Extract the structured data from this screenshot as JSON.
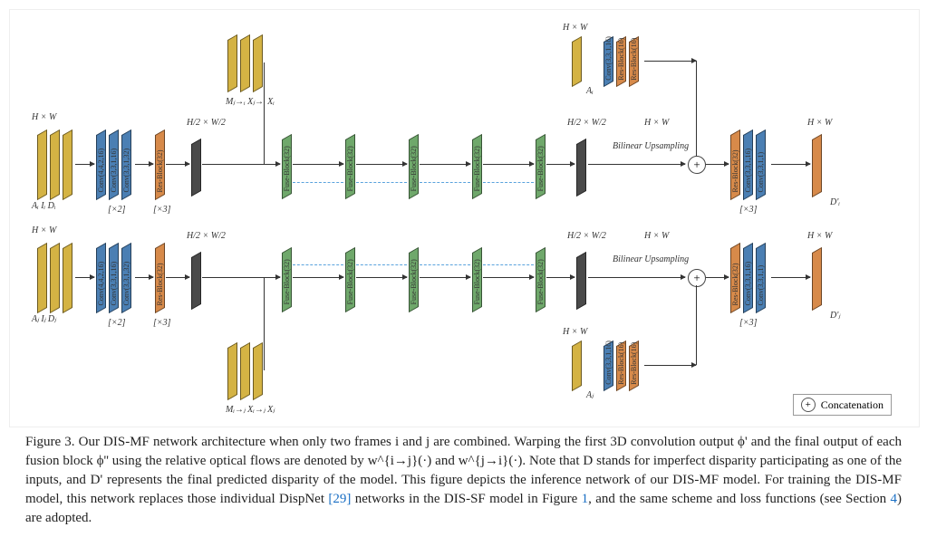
{
  "figure_number": "Figure 3.",
  "caption_text": "Our DIS-MF network architecture when only two frames i and j are combined. Warping the first 3D convolution output ϕ' and the final output of each fusion block ϕ'' using the relative optical flows are denoted by w^{i→j}(·) and w^{j→i}(·). Note that D stands for imperfect disparity participating as one of the inputs, and D' represents the final predicted disparity of the model. This figure depicts the inference network of our DIS-MF model. For training the DIS-MF model, this network replaces those individual DispNet ",
  "caption_ref1": "[29]",
  "caption_text2": " networks in the DIS-SF model in Figure ",
  "caption_ref2": "1",
  "caption_text3": ", and the same scheme and loss functions (see Section ",
  "caption_ref3": "4",
  "caption_text4": ") are adopted.",
  "legend_label": "Concatenation",
  "colors": {
    "yellow": "#d4b344",
    "blue": "#4b7fb3",
    "orange": "#d78a4a",
    "green": "#6fa86b",
    "dark": "#4a4a4a",
    "bg": "#ffffff"
  },
  "labels": {
    "HxW": "H × W",
    "HWover2": "H/2 × W/2",
    "input_top": "Aᵢ Iᵢ Dᵢ",
    "input_bot": "Aⱼ Iⱼ Dⱼ",
    "warp_top": "Mⱼ→ᵢ Xⱼ→ᵢ Xᵢ",
    "warp_bot": "Mᵢ→ⱼ Xᵢ→ⱼ Xⱼ",
    "A_i": "Aᵢ",
    "A_j": "Aⱼ",
    "D_i": "D'ᵢ",
    "D_j": "D'ⱼ",
    "x2": "[×2]",
    "x3": "[×3]",
    "bilinear": "Bilinear\nUpsampling",
    "conv442_16": "Conv(4,4,2,16)",
    "conv331_16": "Conv(3,3,1,16)",
    "conv331_32": "Conv(3,3,1,32)",
    "resblock32": "Res-Block(32)",
    "fuseblock32": "Fuse-Block(32)",
    "resblock16": "Res-Block(16)",
    "conv331_1": "Conv(3,3,1,1)"
  },
  "geom": {
    "slab_h_large": 70,
    "slab_h_med": 56,
    "slab_h_small": 40,
    "slab_w": 9,
    "gap": 5
  }
}
